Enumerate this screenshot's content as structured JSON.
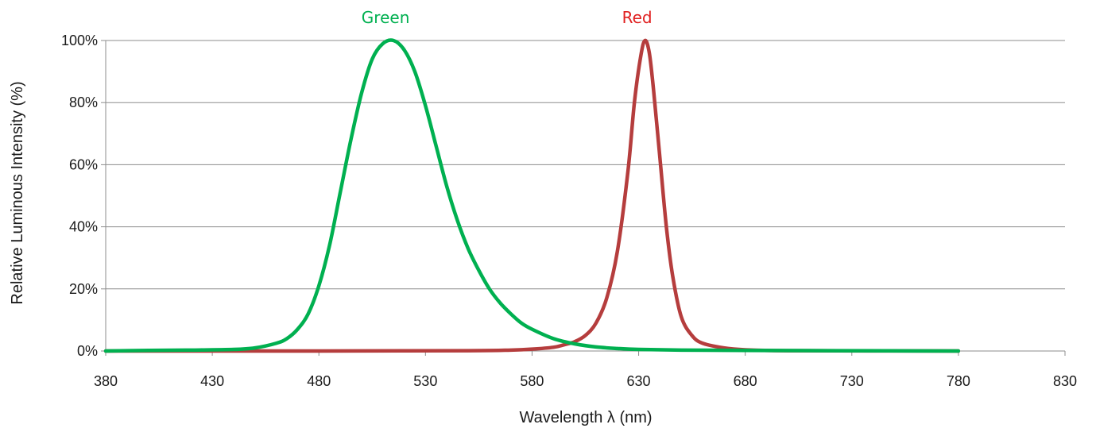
{
  "chart_data": {
    "type": "line",
    "title": "",
    "xlabel": "Wavelength λ (nm)",
    "ylabel": "Relative Luminous Intensity (%)",
    "xlim": [
      380,
      830
    ],
    "ylim": [
      0,
      100
    ],
    "x_ticks": [
      "380",
      "430",
      "480",
      "530",
      "580",
      "630",
      "680",
      "730",
      "780",
      "830"
    ],
    "y_ticks": [
      "0%",
      "20%",
      "40%",
      "60%",
      "80%",
      "100%"
    ],
    "grid": "horizontal",
    "legend": "none",
    "series": [
      {
        "name": "Green",
        "color": "#00b050",
        "label_position": "above-peak",
        "points": [
          [
            380,
            0
          ],
          [
            400,
            0.2
          ],
          [
            420,
            0.3
          ],
          [
            440,
            0.5
          ],
          [
            450,
            1
          ],
          [
            460,
            2.5
          ],
          [
            465,
            4
          ],
          [
            470,
            7
          ],
          [
            475,
            12
          ],
          [
            480,
            21
          ],
          [
            485,
            34
          ],
          [
            490,
            51
          ],
          [
            495,
            68
          ],
          [
            500,
            83
          ],
          [
            505,
            94
          ],
          [
            510,
            99
          ],
          [
            515,
            100
          ],
          [
            520,
            97
          ],
          [
            525,
            90
          ],
          [
            530,
            79
          ],
          [
            535,
            66
          ],
          [
            540,
            53
          ],
          [
            545,
            42
          ],
          [
            550,
            33
          ],
          [
            555,
            26
          ],
          [
            560,
            20
          ],
          [
            565,
            15.5
          ],
          [
            570,
            12
          ],
          [
            575,
            9
          ],
          [
            580,
            7
          ],
          [
            590,
            4
          ],
          [
            600,
            2.3
          ],
          [
            610,
            1.3
          ],
          [
            620,
            0.8
          ],
          [
            630,
            0.5
          ],
          [
            650,
            0.3
          ],
          [
            680,
            0.2
          ],
          [
            720,
            0.1
          ],
          [
            780,
            0
          ]
        ]
      },
      {
        "name": "Red",
        "color": "#b53d3d",
        "label_position": "above-peak",
        "points": [
          [
            380,
            0
          ],
          [
            480,
            0
          ],
          [
            550,
            0.1
          ],
          [
            570,
            0.3
          ],
          [
            580,
            0.6
          ],
          [
            590,
            1.2
          ],
          [
            595,
            2
          ],
          [
            600,
            3
          ],
          [
            605,
            5
          ],
          [
            610,
            9
          ],
          [
            615,
            17
          ],
          [
            620,
            32
          ],
          [
            625,
            58
          ],
          [
            628,
            80
          ],
          [
            631,
            95
          ],
          [
            633,
            100
          ],
          [
            635,
            96
          ],
          [
            637,
            84
          ],
          [
            640,
            62
          ],
          [
            643,
            40
          ],
          [
            646,
            24
          ],
          [
            650,
            11
          ],
          [
            655,
            5
          ],
          [
            660,
            2.5
          ],
          [
            670,
            1
          ],
          [
            680,
            0.4
          ],
          [
            700,
            0.1
          ],
          [
            780,
            0
          ]
        ]
      }
    ]
  }
}
